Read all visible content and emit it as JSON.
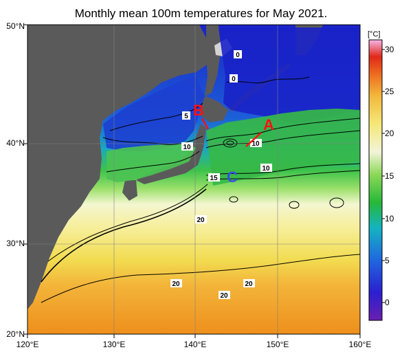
{
  "title": "Monthly mean 100m temperatures for May 2021.",
  "lat_labels": [
    "50°N",
    "40°N",
    "30°N",
    "20°N"
  ],
  "lon_labels": [
    "120°E",
    "130°E",
    "140°E",
    "150°E",
    "160°E"
  ],
  "colorbar": {
    "unit": "[°C]",
    "ticks": [
      "30",
      "25",
      "20",
      "15",
      "10",
      "5",
      "0"
    ]
  },
  "contour_labels": [
    "0",
    "0",
    "5",
    "10",
    "10",
    "10",
    "15",
    "20",
    "20",
    "20",
    "20"
  ],
  "markers": {
    "A": {
      "label": "A",
      "color": "#ff1010"
    },
    "B": {
      "label": "B",
      "color": "#ff1010"
    },
    "C": {
      "label": "C",
      "color": "#3a4fe0"
    }
  },
  "colors": {
    "land": "#5a5a5a",
    "outside_land": "#d3d3d3",
    "cold": "#1a22c8",
    "mid": "#39b54a",
    "warm": "#f2e36a",
    "hot": "#ef9a1a"
  }
}
